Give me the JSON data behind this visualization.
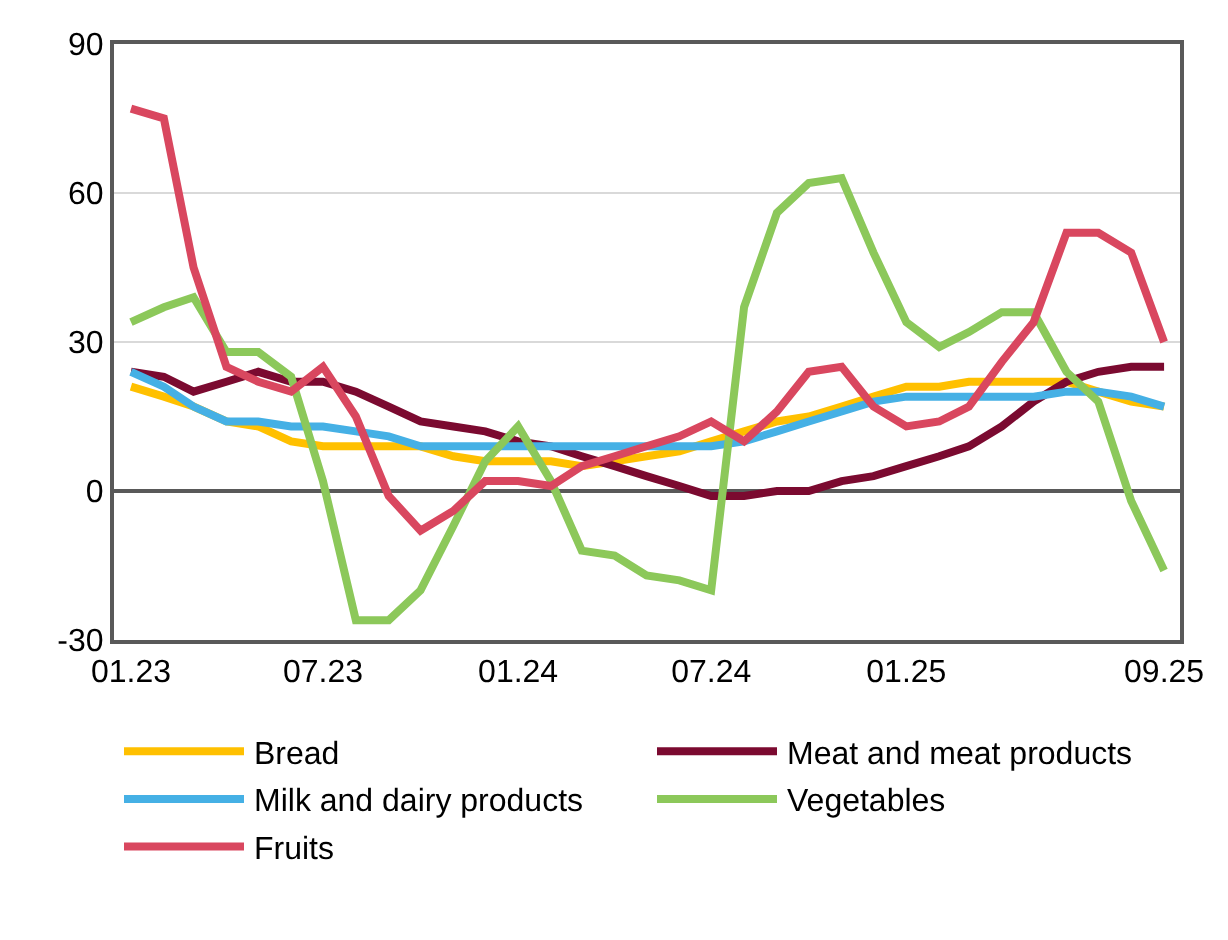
{
  "chart_data": {
    "type": "line",
    "x": [
      "2023-01",
      "2023-02",
      "2023-03",
      "2023-04",
      "2023-05",
      "2023-06",
      "2023-07",
      "2023-08",
      "2023-09",
      "2023-10",
      "2023-11",
      "2023-12",
      "2024-01",
      "2024-02",
      "2024-03",
      "2024-04",
      "2024-05",
      "2024-06",
      "2024-07",
      "2024-08",
      "2024-09",
      "2024-10",
      "2024-11",
      "2024-12",
      "2025-01",
      "2025-02",
      "2025-03",
      "2025-04",
      "2025-05",
      "2025-06",
      "2025-07",
      "2025-08",
      "2025-09"
    ],
    "series": [
      {
        "name": "Bread",
        "color": "#ffc000",
        "values": [
          21,
          19,
          17,
          14,
          13,
          10,
          9,
          9,
          9,
          9,
          7,
          6,
          6,
          6,
          5,
          6,
          7,
          8,
          10,
          12,
          14,
          15,
          17,
          19,
          21,
          21,
          22,
          22,
          22,
          22,
          20,
          18,
          17
        ]
      },
      {
        "name": "Meat and meat products",
        "color": "#7b0a30",
        "values": [
          24,
          23,
          20,
          22,
          24,
          22,
          22,
          20,
          17,
          14,
          13,
          12,
          10,
          9,
          7,
          5,
          3,
          1,
          -1,
          -1,
          0,
          0,
          2,
          3,
          5,
          7,
          9,
          13,
          18,
          22,
          24,
          25,
          25
        ]
      },
      {
        "name": "Milk and dairy products",
        "color": "#45b0e5",
        "values": [
          24,
          21,
          17,
          14,
          14,
          13,
          13,
          12,
          11,
          9,
          9,
          9,
          9,
          9,
          9,
          9,
          9,
          9,
          9,
          10,
          12,
          14,
          16,
          18,
          19,
          19,
          19,
          19,
          19,
          20,
          20,
          19,
          17
        ]
      },
      {
        "name": "Vegetables",
        "color": "#8cc85a",
        "values": [
          34,
          37,
          39,
          28,
          28,
          23,
          2,
          -26,
          -26,
          -20,
          -7,
          6,
          13,
          2,
          -12,
          -13,
          -17,
          -18,
          -20,
          37,
          56,
          62,
          63,
          48,
          34,
          29,
          32,
          36,
          36,
          24,
          18,
          -2,
          -16
        ]
      },
      {
        "name": "Fruits",
        "color": "#d9475f",
        "values": [
          77,
          75,
          45,
          25,
          22,
          20,
          25,
          15,
          -1,
          -8,
          -4,
          2,
          2,
          1,
          5,
          7,
          9,
          11,
          14,
          10,
          16,
          24,
          25,
          17,
          13,
          14,
          17,
          26,
          34,
          52,
          52,
          48,
          30
        ]
      }
    ],
    "xlim": [
      "2022-12-16",
      "2025-09-16"
    ],
    "xticks": [
      {
        "value": "2023-01",
        "label": "01.23"
      },
      {
        "value": "2023-07",
        "label": "07.23"
      },
      {
        "value": "2024-01",
        "label": "01.24"
      },
      {
        "value": "2024-07",
        "label": "07.24"
      },
      {
        "value": "2025-01",
        "label": "01.25"
      },
      {
        "value": "2025-09",
        "label": "09.25"
      }
    ],
    "ylim": [
      -30,
      90
    ],
    "yticks": [
      -30,
      0,
      30,
      60,
      90
    ],
    "grid": "y",
    "legend": "bottom",
    "marker": "none",
    "line_style": "solid"
  }
}
